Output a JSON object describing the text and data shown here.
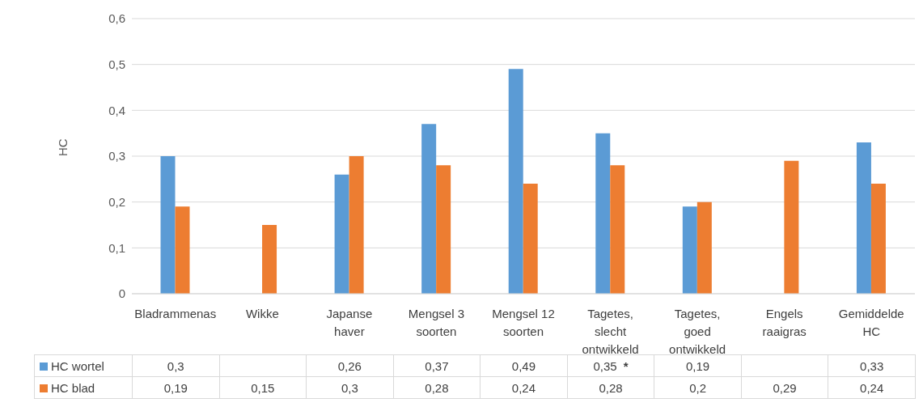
{
  "chart_data": {
    "type": "bar",
    "ylabel": "HC",
    "categories": [
      "Bladrammenas",
      "Wikke",
      "Japanse haver",
      "Mengsel 3 soorten",
      "Mengsel 12 soorten",
      "Tagetes, slecht ontwikkeld",
      "Tagetes, goed ontwikkeld",
      "Engels raaigras",
      "Gemiddelde HC"
    ],
    "series": [
      {
        "name": "HC wortel",
        "color": "#5b9bd5",
        "values": [
          0.3,
          null,
          0.26,
          0.37,
          0.49,
          0.35,
          0.19,
          null,
          0.33
        ],
        "value_labels": [
          "0,3",
          null,
          "0,26",
          "0,37",
          "0,49",
          "0,35",
          "0,19",
          null,
          "0,33"
        ]
      },
      {
        "name": "HC blad",
        "color": "#ed7d31",
        "values": [
          0.19,
          0.15,
          0.3,
          0.28,
          0.24,
          0.28,
          0.2,
          0.29,
          0.24
        ],
        "value_labels": [
          "0,19",
          "0,15",
          "0,3",
          "0,28",
          "0,24",
          "0,28",
          "0,2",
          "0,29",
          "0,24"
        ]
      }
    ],
    "ylim": [
      0,
      0.6
    ],
    "yticks": [
      {
        "value": 0,
        "label": "0"
      },
      {
        "value": 0.1,
        "label": "0,1"
      },
      {
        "value": 0.2,
        "label": "0,2"
      },
      {
        "value": 0.3,
        "label": "0,3"
      },
      {
        "value": 0.4,
        "label": "0,4"
      },
      {
        "value": 0.5,
        "label": "0,5"
      },
      {
        "value": 0.6,
        "label": "0,6"
      }
    ],
    "grid": "y",
    "legend": "bottom",
    "annotations": [
      "*"
    ]
  }
}
